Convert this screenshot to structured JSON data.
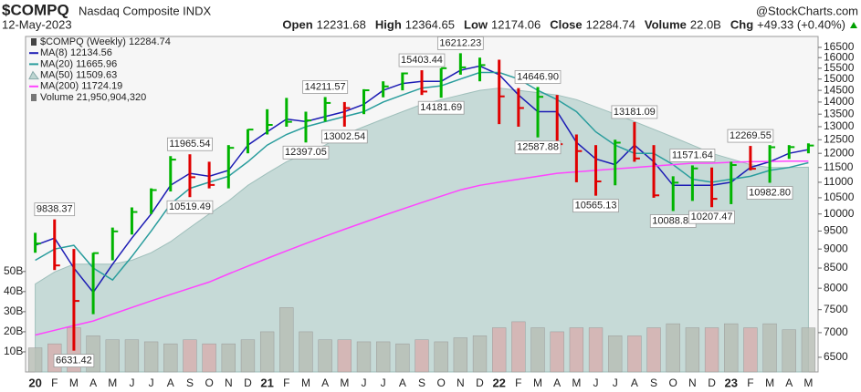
{
  "chart_data": {
    "type": "price",
    "title": "$COMPQ",
    "subtitle": "Nasdaq Composite INDX",
    "date": "12-May-2023",
    "credit": "@StockCharts.com",
    "quote": [
      {
        "label": "Open",
        "value": 12231.68
      },
      {
        "label": "High",
        "value": 12364.65
      },
      {
        "label": "Low",
        "value": 12174.06
      },
      {
        "label": "Close",
        "value": 12284.74
      },
      {
        "label": "Volume",
        "value": "22.0B"
      },
      {
        "label": "Chg",
        "value": "+49.33 (+0.40%)"
      }
    ],
    "categories": [
      "20",
      "F",
      "M",
      "A",
      "M",
      "J",
      "J",
      "A",
      "S",
      "O",
      "N",
      "D",
      "21",
      "F",
      "M",
      "A",
      "M",
      "J",
      "J",
      "A",
      "S",
      "O",
      "N",
      "D",
      "22",
      "F",
      "M",
      "A",
      "M",
      "J",
      "J",
      "A",
      "S",
      "O",
      "N",
      "D",
      "23",
      "F",
      "M",
      "A",
      "M"
    ],
    "log_scale": true,
    "ylim": [
      6220,
      17050
    ],
    "yticks": [
      6500,
      7000,
      7500,
      8000,
      8500,
      9000,
      9500,
      10000,
      10500,
      11000,
      11500,
      12000,
      12500,
      13000,
      13500,
      14000,
      14500,
      15000,
      15500,
      16000,
      16500
    ],
    "y2lim": [
      0,
      167
    ],
    "y2ticks": [
      {
        "value": 10,
        "label": "10B"
      },
      {
        "value": 20,
        "label": "20B"
      },
      {
        "value": 30,
        "label": "30B"
      },
      {
        "value": 40,
        "label": "40B"
      },
      {
        "value": 50,
        "label": "50B"
      }
    ],
    "series": [
      {
        "name": "$COMPQ (Weekly) 12284.74",
        "kind": "price",
        "up_color": "#00b400",
        "down_color": "#e00000",
        "high": [
          9450,
          9838.37,
          9000,
          8900,
          9600,
          10200,
          10800,
          11900,
          11965.54,
          11700,
          12300,
          12900,
          13700,
          14175,
          13600,
          14211.57,
          14000,
          14550,
          14900,
          15300,
          15403.44,
          15500,
          16212.23,
          16000,
          15900,
          14600,
          14646.9,
          14300,
          12700,
          12300,
          12500,
          13181.09,
          12300,
          11200,
          11571.64,
          11500,
          11700,
          12269.55,
          12300,
          12300,
          12365
        ],
        "low": [
          8900,
          8450,
          6631.42,
          7400,
          8700,
          9400,
          10000,
          10700,
          10519.49,
          10800,
          10800,
          12000,
          12700,
          13000,
          12397.05,
          13200,
          13002.54,
          13500,
          14200,
          14500,
          14300,
          14181.69,
          15200,
          14900,
          13100,
          13000,
          12587.88,
          12100,
          11000,
          10565.13,
          10900,
          11700,
          10500,
          10088.83,
          10400,
          10207.47,
          10300,
          11400,
          10982.8,
          11800,
          12000
        ],
        "close": [
          9150,
          8567,
          7700,
          8890,
          9490,
          10060,
          10745,
          11775,
          11168,
          10912,
          12199,
          12888,
          13070,
          13192,
          13247,
          13962,
          13749,
          14504,
          14673,
          15259,
          14448,
          15498,
          15538,
          15645,
          14240,
          13751,
          14221,
          12335,
          12081,
          11028,
          12391,
          11816,
          10576,
          10988,
          11468,
          10466,
          11585,
          11456,
          12222,
          12227,
          12284.74
        ]
      },
      {
        "name": "MA(8) 12134.56",
        "kind": "line",
        "color": "#1c1cb4",
        "values": [
          9100,
          9300,
          8500,
          7900,
          8600,
          9300,
          10000,
          10900,
          11300,
          11200,
          11400,
          12300,
          12800,
          13300,
          13200,
          13400,
          13600,
          13900,
          14500,
          14800,
          14900,
          14900,
          15400,
          15600,
          15200,
          14300,
          13600,
          13600,
          12400,
          11800,
          11600,
          12300,
          11700,
          10900,
          10900,
          10900,
          11000,
          11500,
          11700,
          12000,
          12134.56
        ]
      },
      {
        "name": "MA(20) 11665.96",
        "kind": "line",
        "color": "#2a9d9d",
        "values": [
          8700,
          9000,
          9100,
          8500,
          8200,
          8800,
          9500,
          10300,
          10800,
          11000,
          11200,
          11700,
          12300,
          12700,
          13000,
          13200,
          13400,
          13600,
          14000,
          14300,
          14600,
          14700,
          15000,
          15300,
          15300,
          15000,
          14500,
          14100,
          13600,
          12800,
          12300,
          12000,
          12000,
          11600,
          11100,
          11000,
          11100,
          11200,
          11400,
          11500,
          11665.96
        ]
      },
      {
        "name": "MA(50) 11509.63",
        "kind": "area",
        "color": "#bdd5d1",
        "values": [
          8100,
          8400,
          8600,
          8600,
          8600,
          8700,
          8900,
          9200,
          9600,
          10000,
          10400,
          10900,
          11300,
          11700,
          12000,
          12300,
          12700,
          13000,
          13300,
          13600,
          13900,
          14100,
          14300,
          14500,
          14600,
          14500,
          14400,
          14300,
          14100,
          13800,
          13500,
          13200,
          12900,
          12600,
          12300,
          12000,
          11800,
          11600,
          11500,
          11500,
          11509.63
        ]
      },
      {
        "name": "MA(200) 11724.19",
        "kind": "line",
        "color": "#ff44ff",
        "values": [
          6950,
          7050,
          7150,
          7250,
          7400,
          7550,
          7700,
          7850,
          8000,
          8150,
          8350,
          8550,
          8750,
          8950,
          9150,
          9350,
          9550,
          9750,
          9950,
          10150,
          10350,
          10550,
          10750,
          10900,
          11000,
          11100,
          11200,
          11300,
          11350,
          11400,
          11450,
          11500,
          11550,
          11600,
          11650,
          11650,
          11680,
          11700,
          11710,
          11720,
          11724.19
        ]
      },
      {
        "name": "Volume 21,950,904,320",
        "kind": "volume",
        "axis": "y2",
        "up_color": "#b7bdb4",
        "down_color": "#d7aeae",
        "values": [
          12,
          14,
          22,
          18,
          16,
          16,
          15,
          14,
          16,
          14,
          14,
          16,
          20,
          32,
          20,
          16,
          16,
          15,
          15,
          14,
          16,
          15,
          17,
          18,
          22,
          25,
          22,
          20,
          22,
          22,
          18,
          18,
          22,
          24,
          22,
          22,
          24,
          22,
          24,
          21,
          21.95
        ]
      }
    ],
    "annotations": [
      "9838.37",
      "6631.42",
      "11965.54",
      "10519.49",
      "12397.05",
      "14211.57",
      "13002.54",
      "15403.44",
      "14181.69",
      "16212.23",
      "12587.88",
      "14646.90",
      "10565.13",
      "13181.09",
      "10088.83",
      "11571.64",
      "10207.47",
      "12269.55",
      "10982.80"
    ]
  }
}
